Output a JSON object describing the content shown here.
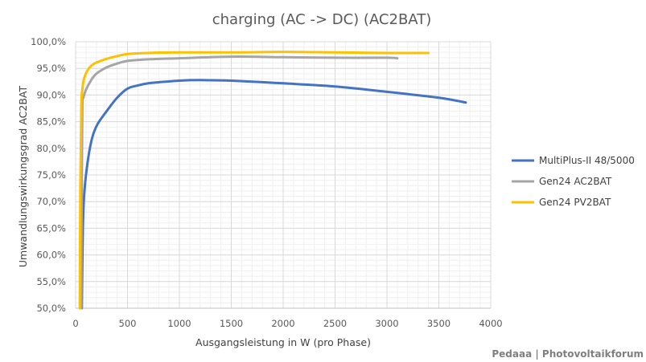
{
  "chart_data": {
    "type": "line",
    "title": "charging (AC -> DC) (AC2BAT)",
    "xlabel": "Ausgangsleistung in W (pro Phase)",
    "ylabel": "Umwandlungswirkungsgrad AC2BAT",
    "xlim": [
      0,
      4000
    ],
    "ylim": [
      50,
      100
    ],
    "x_ticks": [
      0,
      500,
      1000,
      1500,
      2000,
      2500,
      3000,
      3500,
      4000
    ],
    "x_tick_labels": [
      "0",
      "500",
      "1000",
      "1500",
      "2000",
      "2500",
      "3000",
      "3500",
      "4000"
    ],
    "y_ticks": [
      50,
      55,
      60,
      65,
      70,
      75,
      80,
      85,
      90,
      95,
      100
    ],
    "y_tick_labels": [
      "50,0%",
      "55,0%",
      "60,0%",
      "65,0%",
      "70,0%",
      "75,0%",
      "80,0%",
      "85,0%",
      "90,0%",
      "95,0%",
      "100,0%"
    ],
    "grid": true,
    "minor_grid": true,
    "legend_position": "right",
    "series": [
      {
        "name": "MultiPlus-II 48/5000",
        "color": "#4472c4",
        "points": [
          [
            60,
            50.0
          ],
          [
            70,
            65.0
          ],
          [
            85,
            72.0
          ],
          [
            120,
            78.0
          ],
          [
            160,
            82.0
          ],
          [
            210,
            84.5
          ],
          [
            300,
            87.0
          ],
          [
            400,
            89.5
          ],
          [
            500,
            91.2
          ],
          [
            600,
            91.8
          ],
          [
            700,
            92.2
          ],
          [
            800,
            92.4
          ],
          [
            1000,
            92.7
          ],
          [
            1200,
            92.8
          ],
          [
            1500,
            92.7
          ],
          [
            2000,
            92.2
          ],
          [
            2500,
            91.6
          ],
          [
            3000,
            90.6
          ],
          [
            3500,
            89.5
          ],
          [
            3760,
            88.6
          ]
        ]
      },
      {
        "name": "Gen24 AC2BAT",
        "color": "#a5a5a5",
        "points": [
          [
            55,
            50.0
          ],
          [
            60,
            75.0
          ],
          [
            65,
            88.0
          ],
          [
            75,
            89.5
          ],
          [
            100,
            91.0
          ],
          [
            150,
            92.8
          ],
          [
            200,
            94.0
          ],
          [
            300,
            95.2
          ],
          [
            400,
            95.9
          ],
          [
            500,
            96.4
          ],
          [
            700,
            96.7
          ],
          [
            1000,
            96.9
          ],
          [
            1500,
            97.2
          ],
          [
            2000,
            97.1
          ],
          [
            2500,
            97.0
          ],
          [
            3000,
            97.0
          ],
          [
            3100,
            96.9
          ]
        ]
      },
      {
        "name": "Gen24 PV2BAT",
        "color": "#ffc000",
        "points": [
          [
            40,
            50.0
          ],
          [
            45,
            72.0
          ],
          [
            55,
            88.0
          ],
          [
            65,
            91.0
          ],
          [
            80,
            93.0
          ],
          [
            120,
            94.8
          ],
          [
            180,
            95.9
          ],
          [
            300,
            96.8
          ],
          [
            400,
            97.3
          ],
          [
            500,
            97.7
          ],
          [
            700,
            97.9
          ],
          [
            1000,
            98.0
          ],
          [
            1500,
            98.0
          ],
          [
            2000,
            98.1
          ],
          [
            2500,
            98.0
          ],
          [
            3000,
            97.9
          ],
          [
            3400,
            97.9
          ]
        ]
      }
    ],
    "annotation": "Pedaaa | Photovoltaikforum"
  }
}
